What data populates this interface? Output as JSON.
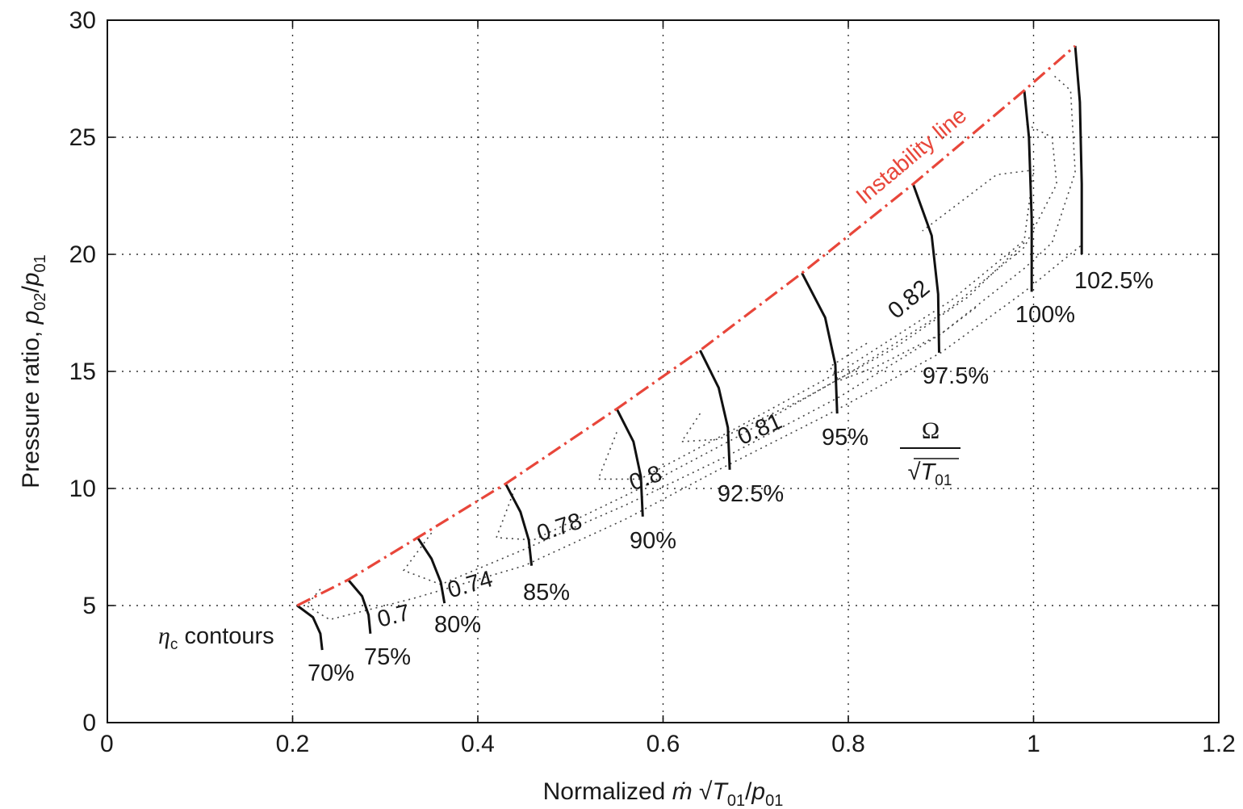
{
  "chart_data": {
    "type": "line",
    "xlabel": "Normalized ṁ√T01/p01",
    "ylabel": "Pressure ratio, p02/p01",
    "xlim": [
      0,
      1.2
    ],
    "ylim": [
      0,
      30
    ],
    "x_ticks": [
      "0",
      "0.2",
      "0.4",
      "0.6",
      "0.8",
      "1",
      "1.2"
    ],
    "y_ticks": [
      "0",
      "5",
      "10",
      "15",
      "20",
      "25",
      "30"
    ],
    "x_tick_values": [
      0,
      0.2,
      0.4,
      0.6,
      0.8,
      1.0,
      1.2
    ],
    "y_tick_values": [
      0,
      5,
      10,
      15,
      20,
      25,
      30
    ],
    "grid": true,
    "instability_line": {
      "label": "Instability line",
      "color": "#e8463a",
      "points": [
        [
          0.205,
          5.0
        ],
        [
          0.26,
          6.1
        ],
        [
          0.335,
          7.9
        ],
        [
          0.43,
          10.2
        ],
        [
          0.55,
          13.4
        ],
        [
          0.64,
          15.9
        ],
        [
          0.75,
          19.2
        ],
        [
          0.87,
          23.0
        ],
        [
          0.99,
          27.0
        ],
        [
          1.045,
          28.9
        ]
      ]
    },
    "speed_lines": [
      {
        "label": "70%",
        "points": [
          [
            0.205,
            5.0
          ],
          [
            0.222,
            4.5
          ],
          [
            0.23,
            3.8
          ],
          [
            0.232,
            3.1
          ]
        ]
      },
      {
        "label": "75%",
        "points": [
          [
            0.26,
            6.1
          ],
          [
            0.275,
            5.4
          ],
          [
            0.282,
            4.6
          ],
          [
            0.284,
            3.8
          ]
        ]
      },
      {
        "label": "80%",
        "points": [
          [
            0.335,
            7.9
          ],
          [
            0.35,
            7.0
          ],
          [
            0.36,
            6.0
          ],
          [
            0.364,
            5.1
          ]
        ]
      },
      {
        "label": "85%",
        "points": [
          [
            0.43,
            10.2
          ],
          [
            0.446,
            9.0
          ],
          [
            0.455,
            7.8
          ],
          [
            0.458,
            6.7
          ]
        ]
      },
      {
        "label": "90%",
        "points": [
          [
            0.55,
            13.4
          ],
          [
            0.568,
            12.0
          ],
          [
            0.576,
            10.5
          ],
          [
            0.578,
            8.8
          ]
        ]
      },
      {
        "label": "92.5%",
        "points": [
          [
            0.64,
            15.9
          ],
          [
            0.66,
            14.3
          ],
          [
            0.67,
            12.6
          ],
          [
            0.672,
            10.8
          ]
        ]
      },
      {
        "label": "95%",
        "points": [
          [
            0.75,
            19.2
          ],
          [
            0.775,
            17.3
          ],
          [
            0.786,
            15.3
          ],
          [
            0.788,
            13.2
          ]
        ]
      },
      {
        "label": "97.5%",
        "points": [
          [
            0.87,
            23.0
          ],
          [
            0.89,
            20.8
          ],
          [
            0.897,
            18.3
          ],
          [
            0.898,
            15.8
          ]
        ]
      },
      {
        "label": "100%",
        "points": [
          [
            0.99,
            27.0
          ],
          [
            0.995,
            25.0
          ],
          [
            0.998,
            21.5
          ],
          [
            0.998,
            18.4
          ]
        ]
      },
      {
        "label": "102.5%",
        "points": [
          [
            1.045,
            28.9
          ],
          [
            1.05,
            26.5
          ],
          [
            1.052,
            23.0
          ],
          [
            1.052,
            20.0
          ]
        ]
      }
    ],
    "efficiency_contours": [
      {
        "label": "0.7",
        "points": [
          [
            0.23,
            5.7
          ],
          [
            0.215,
            5.0
          ],
          [
            0.24,
            4.4
          ],
          [
            0.33,
            5.3
          ],
          [
            0.45,
            6.7
          ],
          [
            0.56,
            8.7
          ],
          [
            0.66,
            10.8
          ],
          [
            0.78,
            13.2
          ],
          [
            0.9,
            15.8
          ],
          [
            0.99,
            18.4
          ],
          [
            1.052,
            20.4
          ]
        ]
      },
      {
        "label": "0.74",
        "points": [
          [
            0.35,
            8.1
          ],
          [
            0.32,
            6.5
          ],
          [
            0.36,
            5.9
          ],
          [
            0.45,
            7.4
          ],
          [
            0.56,
            9.3
          ],
          [
            0.67,
            11.4
          ],
          [
            0.79,
            13.9
          ],
          [
            0.9,
            16.6
          ],
          [
            0.99,
            19.4
          ],
          [
            1.02,
            20.5
          ],
          [
            1.045,
            23.5
          ],
          [
            1.04,
            27.0
          ],
          [
            1.02,
            27.7
          ]
        ]
      },
      {
        "label": "0.78",
        "points": [
          [
            0.44,
            10.0
          ],
          [
            0.42,
            7.9
          ],
          [
            0.46,
            7.8
          ],
          [
            0.57,
            9.9
          ],
          [
            0.68,
            12.2
          ],
          [
            0.8,
            14.9
          ],
          [
            0.91,
            17.7
          ],
          [
            0.99,
            20.3
          ],
          [
            1.025,
            23.0
          ],
          [
            1.02,
            25.0
          ],
          [
            0.99,
            25.6
          ]
        ]
      },
      {
        "label": "0.8",
        "points": [
          [
            0.55,
            12.4
          ],
          [
            0.53,
            10.4
          ],
          [
            0.575,
            10.4
          ],
          [
            0.68,
            12.6
          ],
          [
            0.8,
            15.2
          ],
          [
            0.91,
            18.0
          ],
          [
            0.99,
            20.6
          ],
          [
            1.0,
            23.6
          ],
          [
            0.96,
            23.4
          ],
          [
            0.88,
            21.0
          ]
        ]
      },
      {
        "label": "0.81",
        "points": [
          [
            0.64,
            13.2
          ],
          [
            0.62,
            12.0
          ],
          [
            0.66,
            12.1
          ],
          [
            0.75,
            13.8
          ],
          [
            0.85,
            16.0
          ],
          [
            0.93,
            18.2
          ],
          [
            0.99,
            20.5
          ]
        ]
      },
      {
        "label": "0.82",
        "points": [
          [
            0.82,
            16.2
          ],
          [
            0.78,
            15.2
          ],
          [
            0.79,
            14.6
          ],
          [
            0.83,
            15.2
          ],
          [
            0.9,
            16.6
          ],
          [
            0.94,
            17.8
          ]
        ]
      }
    ],
    "annotations": [
      "ηc contours",
      "Ω/√T01"
    ]
  }
}
